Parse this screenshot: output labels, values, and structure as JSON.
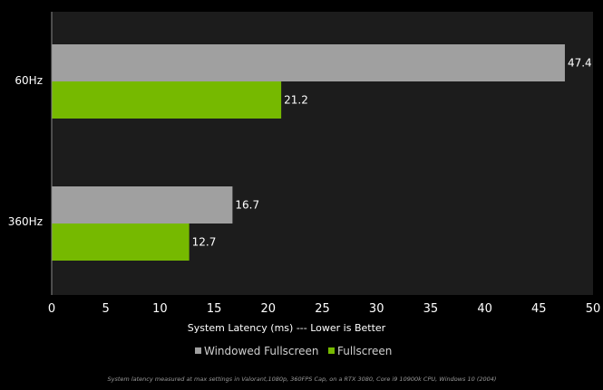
{
  "chart_data": {
    "type": "bar",
    "orientation": "horizontal",
    "categories": [
      "60Hz",
      "360Hz"
    ],
    "series": [
      {
        "name": "Windowed Fullscreen",
        "values": [
          47.4,
          16.7
        ]
      },
      {
        "name": "Fullscreen",
        "values": [
          21.2,
          12.7
        ]
      }
    ],
    "xlabel": "System Latency (ms) --- Lower is Better",
    "xlim": [
      0,
      50
    ],
    "xticks": [
      0,
      5,
      10,
      15,
      20,
      25,
      30,
      35,
      40,
      45,
      50
    ],
    "grid": false,
    "legend_position": "bottom",
    "data_labels": true,
    "colors": {
      "Windowed Fullscreen": "#a0a0a0",
      "Fullscreen": "#76b900",
      "plot_background": "#1c1c1c",
      "page_background": "#000000"
    }
  },
  "footnote": "System latency measured at max settings in Valorant,1080p, 360FPS Cap, on a RTX 3080, Core i9 10900k CPU, Windows 10 (2004)"
}
